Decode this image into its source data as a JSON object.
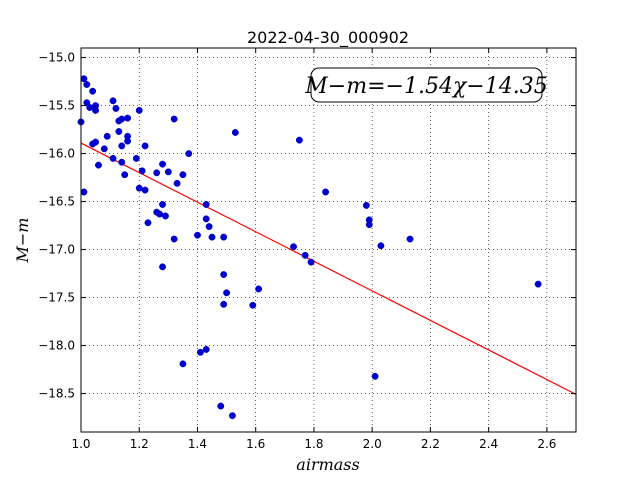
{
  "chart_data": {
    "type": "scatter",
    "title": "2022-04-30_000902",
    "xlabel": "airmass",
    "ylabel": "M−m",
    "xlim": [
      1.0,
      2.7
    ],
    "ylim": [
      -18.9,
      -14.9
    ],
    "y_inverted": true,
    "grid": true,
    "x_ticks": [
      "1.0",
      "1.2",
      "1.4",
      "1.6",
      "1.8",
      "2.0",
      "2.2",
      "2.4",
      "2.6"
    ],
    "x_tick_values": [
      1.0,
      1.2,
      1.4,
      1.6,
      1.8,
      2.0,
      2.2,
      2.4,
      2.6
    ],
    "y_ticks": [
      "−15.0",
      "−15.5",
      "−16.0",
      "−16.5",
      "−17.0",
      "−17.5",
      "−18.0",
      "−18.5"
    ],
    "y_tick_values": [
      -15.0,
      -15.5,
      -16.0,
      -16.5,
      -17.0,
      -17.5,
      -18.0,
      -18.5
    ],
    "annotation": "M−m=−1.54χ−14.35",
    "fit": {
      "slope": -1.54,
      "intercept": -14.35,
      "color": "#ff0000"
    },
    "point_color": "#0000cc",
    "points": [
      [
        1.0,
        -15.67
      ],
      [
        1.01,
        -15.22
      ],
      [
        1.02,
        -15.28
      ],
      [
        1.02,
        -15.47
      ],
      [
        1.03,
        -15.52
      ],
      [
        1.01,
        -16.4
      ],
      [
        1.04,
        -15.9
      ],
      [
        1.04,
        -15.35
      ],
      [
        1.05,
        -15.5
      ],
      [
        1.05,
        -15.55
      ],
      [
        1.05,
        -15.88
      ],
      [
        1.06,
        -16.12
      ],
      [
        1.08,
        -15.95
      ],
      [
        1.09,
        -15.82
      ],
      [
        1.11,
        -15.45
      ],
      [
        1.11,
        -16.05
      ],
      [
        1.12,
        -15.53
      ],
      [
        1.13,
        -15.66
      ],
      [
        1.13,
        -15.77
      ],
      [
        1.14,
        -15.92
      ],
      [
        1.14,
        -15.64
      ],
      [
        1.14,
        -16.09
      ],
      [
        1.15,
        -16.22
      ],
      [
        1.16,
        -15.82
      ],
      [
        1.16,
        -15.87
      ],
      [
        1.16,
        -15.63
      ],
      [
        1.19,
        -16.05
      ],
      [
        1.2,
        -16.36
      ],
      [
        1.2,
        -15.55
      ],
      [
        1.21,
        -16.18
      ],
      [
        1.22,
        -16.38
      ],
      [
        1.22,
        -15.92
      ],
      [
        1.23,
        -16.72
      ],
      [
        1.26,
        -16.2
      ],
      [
        1.26,
        -16.61
      ],
      [
        1.27,
        -16.63
      ],
      [
        1.28,
        -16.11
      ],
      [
        1.28,
        -16.53
      ],
      [
        1.28,
        -17.18
      ],
      [
        1.29,
        -16.65
      ],
      [
        1.3,
        -16.19
      ],
      [
        1.32,
        -15.64
      ],
      [
        1.32,
        -16.89
      ],
      [
        1.33,
        -16.31
      ],
      [
        1.35,
        -16.22
      ],
      [
        1.35,
        -18.19
      ],
      [
        1.37,
        -16.0
      ],
      [
        1.4,
        -16.85
      ],
      [
        1.41,
        -18.07
      ],
      [
        1.43,
        -18.04
      ],
      [
        1.43,
        -16.53
      ],
      [
        1.43,
        -16.68
      ],
      [
        1.44,
        -16.76
      ],
      [
        1.45,
        -16.87
      ],
      [
        1.48,
        -18.63
      ],
      [
        1.49,
        -16.87
      ],
      [
        1.49,
        -17.57
      ],
      [
        1.49,
        -17.26
      ],
      [
        1.5,
        -17.45
      ],
      [
        1.52,
        -18.73
      ],
      [
        1.53,
        -15.78
      ],
      [
        1.59,
        -17.58
      ],
      [
        1.61,
        -17.41
      ],
      [
        1.73,
        -16.97
      ],
      [
        1.75,
        -15.86
      ],
      [
        1.77,
        -17.06
      ],
      [
        1.79,
        -17.13
      ],
      [
        1.84,
        -16.4
      ],
      [
        1.98,
        -16.54
      ],
      [
        1.99,
        -16.69
      ],
      [
        1.99,
        -16.74
      ],
      [
        2.01,
        -18.32
      ],
      [
        2.03,
        -16.96
      ],
      [
        2.13,
        -16.89
      ],
      [
        2.57,
        -17.36
      ]
    ]
  }
}
